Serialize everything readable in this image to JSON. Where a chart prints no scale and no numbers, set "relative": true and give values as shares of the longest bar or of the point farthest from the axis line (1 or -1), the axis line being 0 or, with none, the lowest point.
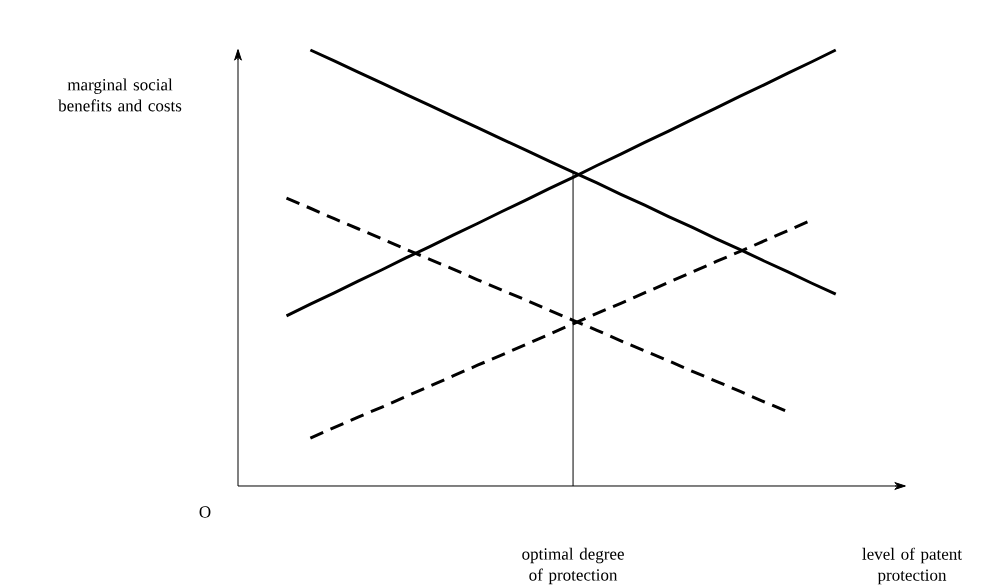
{
  "chart_data": {
    "type": "line",
    "relative": true,
    "xlabel": "level of patent protection",
    "marker": "none",
    "categories": [
      null,
      null,
      null,
      null,
      null,
      null,
      null,
      null,
      null,
      null,
      null,
      null,
      null,
      null,
      null,
      null,
      null,
      null,
      null,
      null,
      null,
      null,
      null,
      null
    ],
    "series": [
      {
        "color": "#000000",
        "line_style": "solid",
        "values": [
          null,
          1,
          0.975,
          0.949,
          0.924,
          0.898,
          0.873,
          0.847,
          0.822,
          0.796,
          0.771,
          0.745,
          0.72,
          0.695,
          0.669,
          0.644,
          0.618,
          0.593,
          0.567,
          0.542,
          0.516,
          0.491,
          0.465,
          0.44
        ]
      },
      {
        "color": "#000000",
        "line_style": "solid",
        "values": [
          0.39,
          0.417,
          0.443,
          0.47,
          0.496,
          0.523,
          0.549,
          0.576,
          0.602,
          0.629,
          0.655,
          0.682,
          0.708,
          0.735,
          0.761,
          0.788,
          0.814,
          0.841,
          0.867,
          0.894,
          0.92,
          0.947,
          0.973,
          1
        ]
      },
      {
        "color": "#000000",
        "line_style": "dashed",
        "values": [
          0.66,
          0.637,
          0.613,
          0.59,
          0.567,
          0.543,
          0.52,
          0.497,
          0.473,
          0.45,
          0.427,
          0.403,
          0.38,
          0.357,
          0.333,
          0.31,
          0.287,
          0.263,
          0.24,
          0.217,
          0.193,
          0.17,
          null,
          null
        ]
      },
      {
        "color": "#000000",
        "line_style": "dashed",
        "values": [
          null,
          0.11,
          0.134,
          0.158,
          0.181,
          0.205,
          0.229,
          0.253,
          0.277,
          0.3,
          0.324,
          0.348,
          0.372,
          0.396,
          0.419,
          0.443,
          0.467,
          0.491,
          0.515,
          0.538,
          0.562,
          0.586,
          0.61,
          null
        ]
      }
    ],
    "annotations": [
      "marginal social benefits and costs",
      "O",
      "optimal degree of protection"
    ]
  }
}
